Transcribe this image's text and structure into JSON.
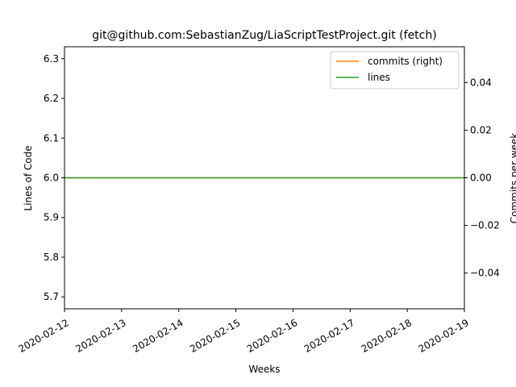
{
  "chart_data": {
    "type": "line",
    "title": "git@github.com:SebastianZug/LiaScriptTestProject.git (fetch)",
    "xlabel": "Weeks",
    "ylabel": "Lines of Code",
    "ylabel_right": "Commits per week",
    "xlim": [
      "2020-02-12",
      "2020-02-19"
    ],
    "x_ticks": [
      "2020-02-12",
      "2020-02-13",
      "2020-02-14",
      "2020-02-15",
      "2020-02-16",
      "2020-02-17",
      "2020-02-18",
      "2020-02-19"
    ],
    "ylim": [
      5.67,
      6.33
    ],
    "y_ticks": [
      "5.7",
      "5.8",
      "5.9",
      "6.0",
      "6.1",
      "6.2",
      "6.3"
    ],
    "ylim_right": [
      -0.055,
      0.055
    ],
    "y_ticks_right": [
      "−0.04",
      "−0.02",
      "0.00",
      "0.02",
      "0.04"
    ],
    "grid": false,
    "legend_position": "top-right",
    "series": [
      {
        "name": "commits (right)",
        "axis": "right",
        "color": "#ff7f0e",
        "x": [
          "2020-02-12",
          "2020-02-19"
        ],
        "values": [
          0,
          0
        ]
      },
      {
        "name": "lines",
        "axis": "left",
        "color": "#2ca02c",
        "x": [
          "2020-02-12",
          "2020-02-19"
        ],
        "values": [
          6,
          6
        ]
      }
    ]
  }
}
